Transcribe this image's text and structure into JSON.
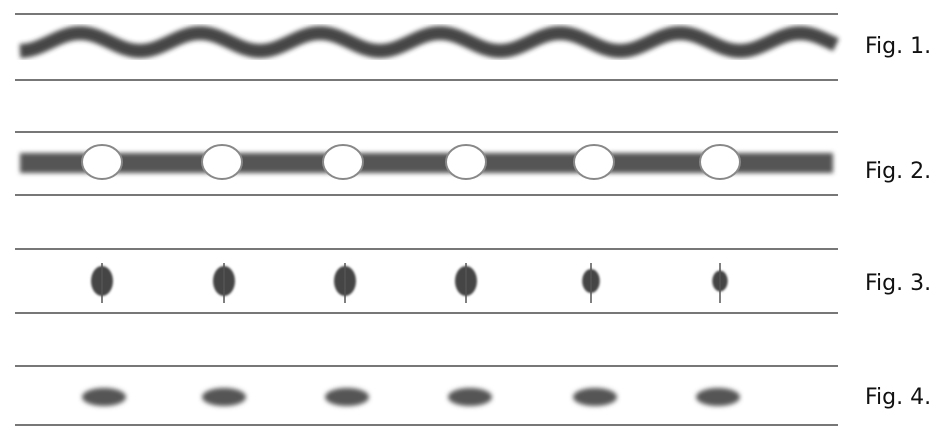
{
  "figures": [
    {
      "label": "Fig. 1."
    },
    {
      "label": "Fig. 2."
    },
    {
      "label": "Fig. 3."
    },
    {
      "label": "Fig. 4."
    }
  ]
}
